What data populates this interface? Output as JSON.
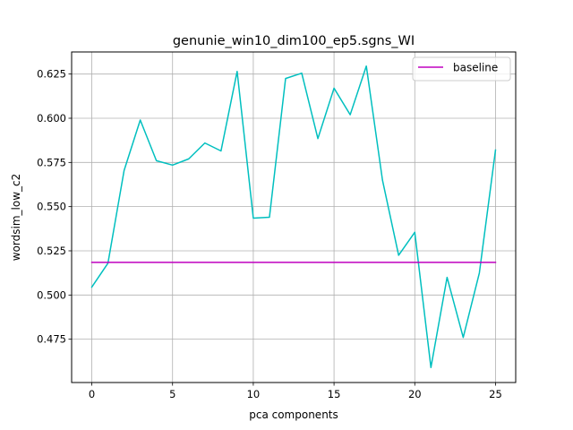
{
  "chart_data": {
    "type": "line",
    "title": "genunie_win10_dim100_ep5.sgns_WI",
    "xlabel": "pca components",
    "ylabel": "wordsim_low_c2",
    "xlim": [
      -1.25,
      26.25
    ],
    "ylim": [
      0.4505,
      0.6375
    ],
    "xticks": [
      0,
      5,
      10,
      15,
      20,
      25
    ],
    "xtick_labels": [
      "0",
      "5",
      "10",
      "15",
      "20",
      "25"
    ],
    "yticks": [
      0.475,
      0.5,
      0.525,
      0.55,
      0.575,
      0.6,
      0.625
    ],
    "ytick_labels": [
      "0.475",
      "0.500",
      "0.525",
      "0.550",
      "0.575",
      "0.600",
      "0.625"
    ],
    "grid": true,
    "legend": {
      "position": "top-right",
      "entries": [
        "baseline"
      ]
    },
    "series": [
      {
        "name": "",
        "color": "#00bfbf",
        "x": [
          0,
          1,
          2,
          3,
          4,
          5,
          6,
          7,
          8,
          9,
          10,
          11,
          12,
          13,
          14,
          15,
          16,
          17,
          18,
          19,
          20,
          21,
          22,
          23,
          24,
          25
        ],
        "y": [
          0.5045,
          0.518,
          0.5705,
          0.599,
          0.576,
          0.5735,
          0.577,
          0.586,
          0.5815,
          0.6265,
          0.5435,
          0.544,
          0.6225,
          0.6255,
          0.5885,
          0.617,
          0.602,
          0.6295,
          0.565,
          0.5225,
          0.5355,
          0.459,
          0.51,
          0.476,
          0.5125,
          0.582
        ]
      },
      {
        "name": "baseline",
        "color": "#bf00bf",
        "x": [
          0,
          25
        ],
        "y": [
          0.5185,
          0.5185
        ]
      }
    ]
  }
}
